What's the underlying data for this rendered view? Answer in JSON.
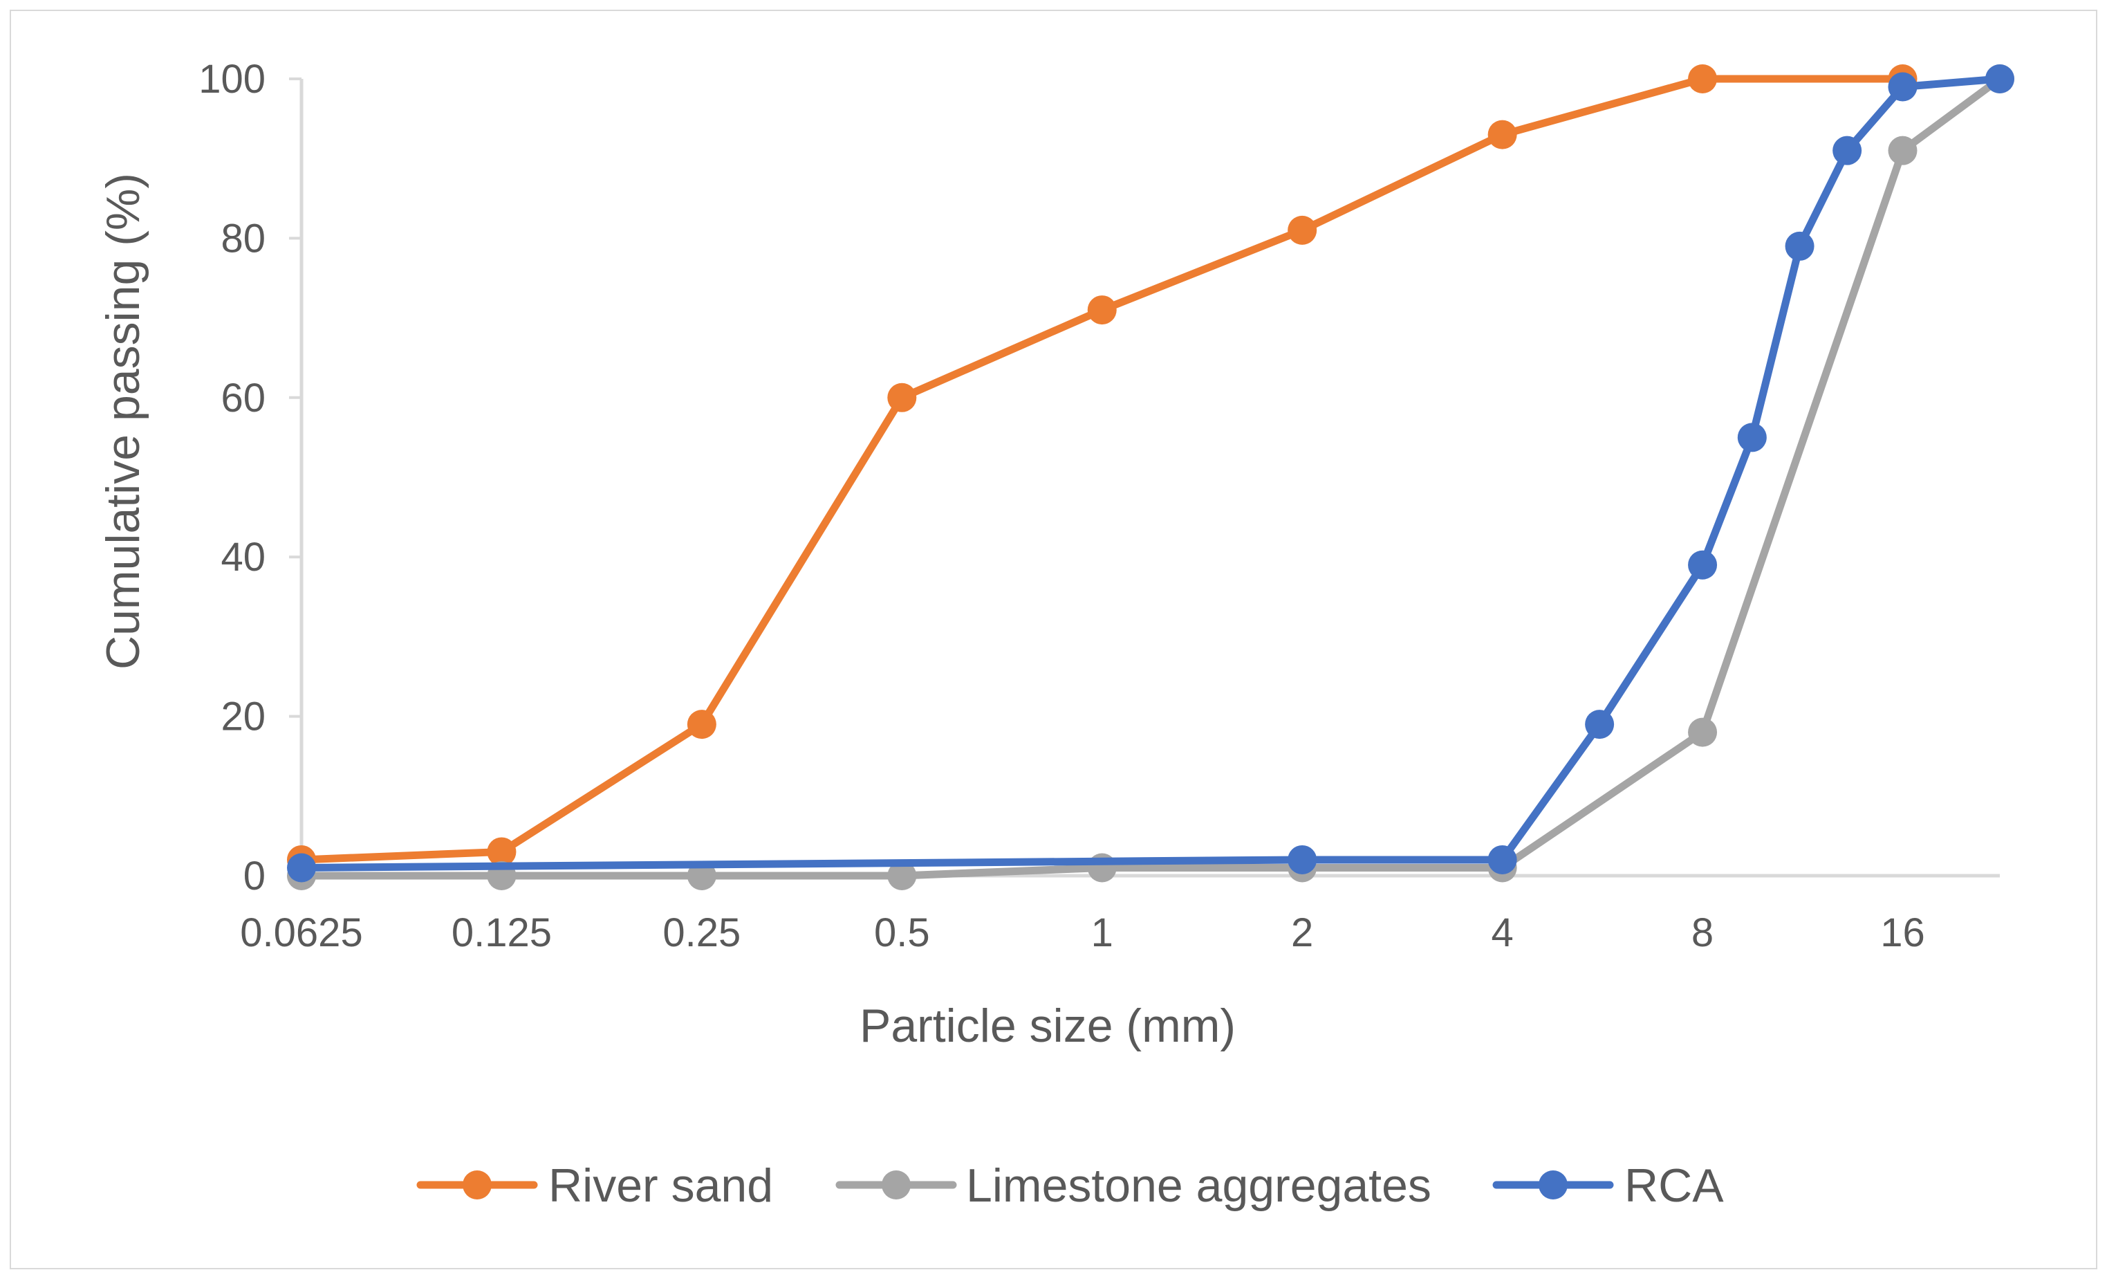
{
  "chart_data": {
    "type": "line",
    "title": "",
    "xlabel": "Particle size (mm)",
    "ylabel": "Cumulative passing (%)",
    "x_scale": "log2",
    "xlim": [
      0.0625,
      22.4
    ],
    "ylim": [
      0,
      100
    ],
    "x_ticks": [
      0.0625,
      0.125,
      0.25,
      0.5,
      1,
      2,
      4,
      8,
      16
    ],
    "x_tick_labels": [
      "0.0625",
      "0.125",
      "0.25",
      "0.5",
      "1",
      "2",
      "4",
      "8",
      "16"
    ],
    "y_ticks": [
      0,
      20,
      40,
      60,
      80,
      100
    ],
    "y_tick_labels": [
      "0",
      "20",
      "40",
      "60",
      "80",
      "100"
    ],
    "grid": false,
    "legend_position": "bottom",
    "series": [
      {
        "name": "River sand",
        "color": "#ed7d31",
        "points": [
          {
            "x": 0.0625,
            "y": 2
          },
          {
            "x": 0.125,
            "y": 3
          },
          {
            "x": 0.25,
            "y": 19
          },
          {
            "x": 0.5,
            "y": 60
          },
          {
            "x": 1,
            "y": 71
          },
          {
            "x": 2,
            "y": 81
          },
          {
            "x": 4,
            "y": 93
          },
          {
            "x": 8,
            "y": 100
          },
          {
            "x": 16,
            "y": 100
          }
        ]
      },
      {
        "name": "Limestone aggregates",
        "color": "#a5a5a5",
        "points": [
          {
            "x": 0.0625,
            "y": 0
          },
          {
            "x": 0.125,
            "y": 0
          },
          {
            "x": 0.25,
            "y": 0
          },
          {
            "x": 0.5,
            "y": 0
          },
          {
            "x": 1,
            "y": 1
          },
          {
            "x": 2,
            "y": 1
          },
          {
            "x": 4,
            "y": 1
          },
          {
            "x": 8,
            "y": 18
          },
          {
            "x": 16,
            "y": 91
          },
          {
            "x": 22.4,
            "y": 100
          }
        ]
      },
      {
        "name": "RCA",
        "color": "#4472c4",
        "points": [
          {
            "x": 0.0625,
            "y": 1
          },
          {
            "x": 2,
            "y": 2
          },
          {
            "x": 4,
            "y": 2
          },
          {
            "x": 5.6,
            "y": 19
          },
          {
            "x": 8,
            "y": 39
          },
          {
            "x": 9.5,
            "y": 55
          },
          {
            "x": 11.2,
            "y": 79
          },
          {
            "x": 13.2,
            "y": 91
          },
          {
            "x": 16,
            "y": 99
          },
          {
            "x": 22.4,
            "y": 100
          }
        ]
      }
    ]
  }
}
